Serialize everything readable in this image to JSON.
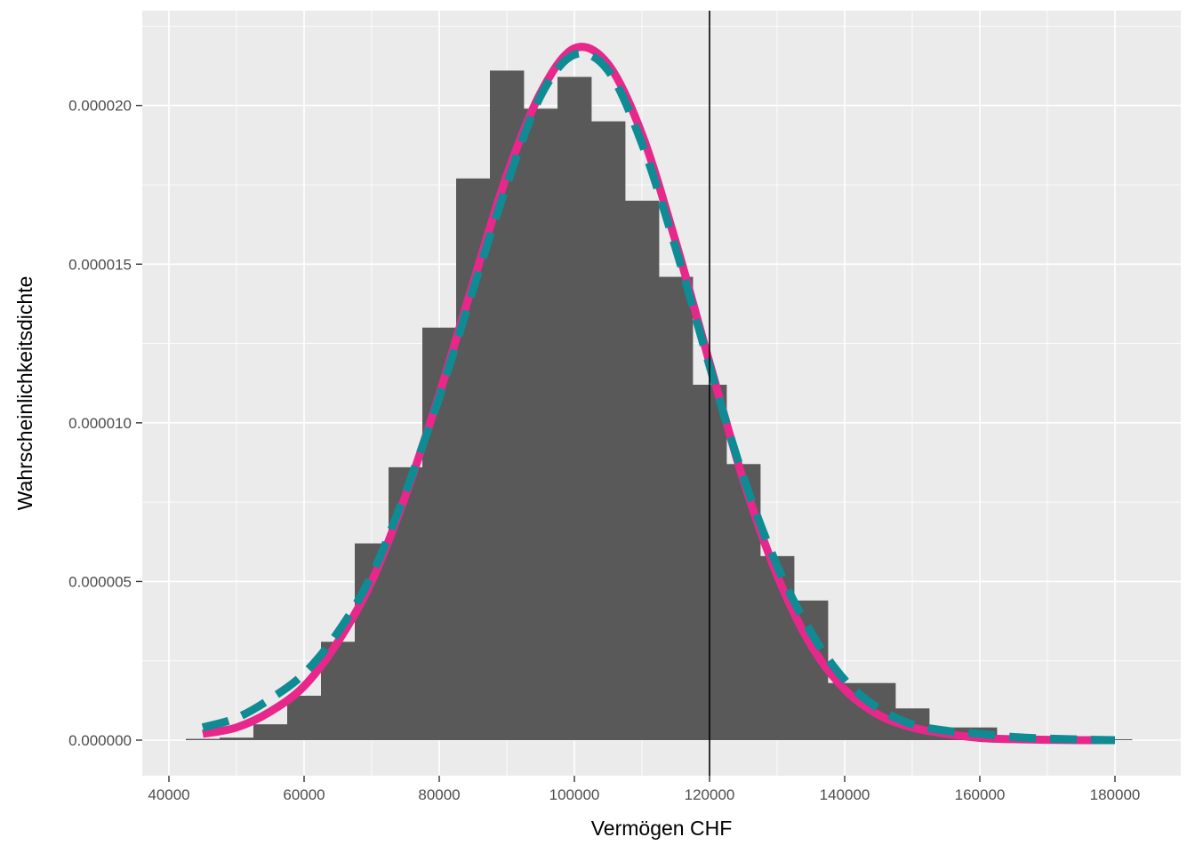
{
  "chart_data": {
    "type": "bar",
    "title": "",
    "xlabel": "Vermögen CHF",
    "ylabel": "Wahrscheinlichkeitsdichte",
    "xlim": [
      40000,
      180000
    ],
    "ylim": [
      0,
      2.1e-05
    ],
    "x_ticks": [
      40000,
      60000,
      80000,
      100000,
      120000,
      140000,
      160000,
      180000
    ],
    "x_tick_labels": [
      "40000",
      "60000",
      "80000",
      "100000",
      "120000",
      "140000",
      "160000",
      "180000"
    ],
    "y_ticks": [
      0,
      5e-06,
      1e-05,
      1.5e-05,
      2e-05
    ],
    "y_tick_labels": [
      "0.000000",
      "0.000005",
      "0.000010",
      "0.000015",
      "0.000020"
    ],
    "grid": true,
    "background": "#ebebeb",
    "histogram": {
      "bin_width": 5000,
      "fill": "#595959",
      "bins": [
        {
          "x0": 42500,
          "x1": 47500,
          "density": 4e-08
        },
        {
          "x0": 47500,
          "x1": 52500,
          "density": 8e-08
        },
        {
          "x0": 52500,
          "x1": 57500,
          "density": 5e-07
        },
        {
          "x0": 57500,
          "x1": 62500,
          "density": 1.4e-06
        },
        {
          "x0": 62500,
          "x1": 67500,
          "density": 3.1e-06
        },
        {
          "x0": 67500,
          "x1": 72500,
          "density": 6.2e-06
        },
        {
          "x0": 72500,
          "x1": 77500,
          "density": 8.6e-06
        },
        {
          "x0": 77500,
          "x1": 82500,
          "density": 1.3e-05
        },
        {
          "x0": 82500,
          "x1": 87500,
          "density": 1.77e-05
        },
        {
          "x0": 87500,
          "x1": 92500,
          "density": 2.11e-05
        },
        {
          "x0": 92500,
          "x1": 97500,
          "density": 1.99e-05
        },
        {
          "x0": 97500,
          "x1": 102500,
          "density": 2.09e-05
        },
        {
          "x0": 102500,
          "x1": 107500,
          "density": 1.95e-05
        },
        {
          "x0": 107500,
          "x1": 112500,
          "density": 1.7e-05
        },
        {
          "x0": 112500,
          "x1": 117500,
          "density": 1.46e-05
        },
        {
          "x0": 117500,
          "x1": 122500,
          "density": 1.12e-05
        },
        {
          "x0": 122500,
          "x1": 127500,
          "density": 8.7e-06
        },
        {
          "x0": 127500,
          "x1": 132500,
          "density": 5.8e-06
        },
        {
          "x0": 132500,
          "x1": 137500,
          "density": 4.4e-06
        },
        {
          "x0": 137500,
          "x1": 142500,
          "density": 1.8e-06
        },
        {
          "x0": 142500,
          "x1": 147500,
          "density": 1.8e-06
        },
        {
          "x0": 147500,
          "x1": 152500,
          "density": 1e-06
        },
        {
          "x0": 152500,
          "x1": 157500,
          "density": 4e-07
        },
        {
          "x0": 157500,
          "x1": 162500,
          "density": 4e-07
        },
        {
          "x0": 162500,
          "x1": 167500,
          "density": 5e-08
        },
        {
          "x0": 167500,
          "x1": 172500,
          "density": 2e-08
        },
        {
          "x0": 172500,
          "x1": 177500,
          "density": 0.0
        },
        {
          "x0": 177500,
          "x1": 182500,
          "density": 0.0
        }
      ]
    },
    "series": [
      {
        "color": "#e8278b",
        "style": "solid",
        "x": [
          45000,
          50000,
          55000,
          60000,
          65000,
          70000,
          75000,
          80000,
          85000,
          90000,
          95000,
          100000,
          105000,
          110000,
          115000,
          120000,
          125000,
          130000,
          135000,
          140000,
          145000,
          150000,
          155000,
          160000,
          165000,
          170000,
          175000,
          180000
        ],
        "values": [
          2e-07,
          4e-07,
          9e-07,
          1.7e-06,
          3.1e-06,
          5e-06,
          7.7e-06,
          1.09e-05,
          1.44e-05,
          1.78e-05,
          2.04e-05,
          2.18e-05,
          2.13e-05,
          1.91e-05,
          1.57e-05,
          1.19e-05,
          8.2e-06,
          5.2e-06,
          3e-06,
          1.6e-06,
          8e-07,
          4e-07,
          2e-07,
          7e-08,
          3e-08,
          1e-08,
          0.0,
          0.0
        ]
      },
      {
        "color": "#0e8b93",
        "style": "dashed",
        "x": [
          45000,
          50000,
          55000,
          60000,
          65000,
          70000,
          75000,
          80000,
          85000,
          90000,
          95000,
          100000,
          105000,
          110000,
          115000,
          120000,
          125000,
          130000,
          135000,
          140000,
          145000,
          150000,
          155000,
          160000,
          165000,
          170000,
          175000,
          180000
        ],
        "values": [
          4e-07,
          7e-07,
          1.3e-06,
          2.1e-06,
          3.4e-06,
          5.2e-06,
          7.8e-06,
          1.08e-05,
          1.42e-05,
          1.75e-05,
          2.03e-05,
          2.16e-05,
          2.11e-05,
          1.88e-05,
          1.55e-05,
          1.18e-05,
          8.3e-06,
          5.5e-06,
          3.4e-06,
          1.9e-06,
          1e-06,
          5e-07,
          3e-07,
          2e-07,
          1e-07,
          5e-08,
          2e-08,
          0.0
        ]
      }
    ],
    "vline": {
      "x": 120000,
      "color": "#000000"
    }
  }
}
